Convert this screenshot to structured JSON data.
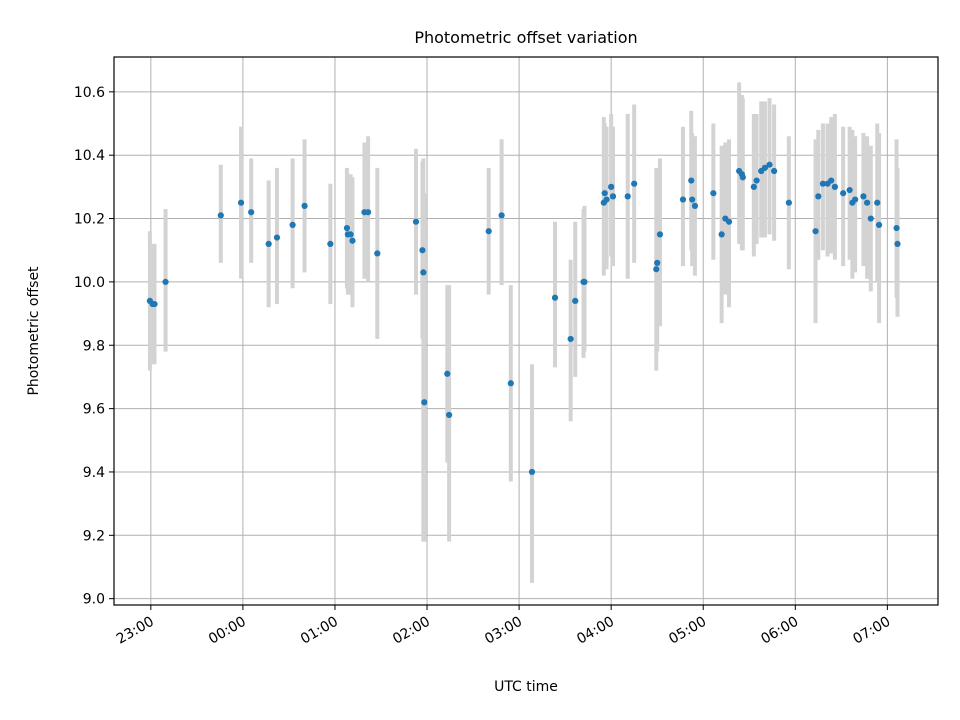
{
  "chart_data": {
    "type": "scatter",
    "title": "Photometric offset variation",
    "xlabel": "UTC time",
    "ylabel": "Photometric offset",
    "grid": true,
    "xlim_hours": [
      -1.4,
      7.55
    ],
    "ylim": [
      8.98,
      10.71
    ],
    "x_ticks": [
      {
        "h": -1,
        "label": "23:00"
      },
      {
        "h": 0,
        "label": "00:00"
      },
      {
        "h": 1,
        "label": "01:00"
      },
      {
        "h": 2,
        "label": "02:00"
      },
      {
        "h": 3,
        "label": "03:00"
      },
      {
        "h": 4,
        "label": "04:00"
      },
      {
        "h": 5,
        "label": "05:00"
      },
      {
        "h": 6,
        "label": "06:00"
      },
      {
        "h": 7,
        "label": "07:00"
      }
    ],
    "y_ticks": [
      {
        "v": 9.0,
        "label": "9.0"
      },
      {
        "v": 9.2,
        "label": "9.2"
      },
      {
        "v": 9.4,
        "label": "9.4"
      },
      {
        "v": 9.6,
        "label": "9.6"
      },
      {
        "v": 9.8,
        "label": "9.8"
      },
      {
        "v": 10.0,
        "label": "10.0"
      },
      {
        "v": 10.2,
        "label": "10.2"
      },
      {
        "v": 10.4,
        "label": "10.4"
      },
      {
        "v": 10.6,
        "label": "10.6"
      }
    ],
    "series": [
      {
        "name": "offset",
        "x_hours": [
          -1.01,
          -0.98,
          -0.96,
          -0.84,
          -0.24,
          -0.02,
          0.09,
          0.28,
          0.37,
          0.54,
          0.67,
          0.95,
          1.13,
          1.14,
          1.17,
          1.19,
          1.32,
          1.36,
          1.46,
          1.88,
          1.95,
          1.96,
          1.97,
          2.22,
          2.24,
          2.67,
          2.81,
          2.91,
          3.14,
          3.39,
          3.56,
          3.61,
          3.7,
          3.71,
          3.92,
          3.93,
          3.95,
          4.0,
          4.02,
          4.18,
          4.25,
          4.49,
          4.5,
          4.53,
          4.78,
          4.87,
          4.88,
          4.91,
          5.11,
          5.2,
          5.24,
          5.28,
          5.39,
          5.42,
          5.43,
          5.55,
          5.58,
          5.63,
          5.67,
          5.72,
          5.77,
          5.93,
          6.22,
          6.25,
          6.3,
          6.35,
          6.39,
          6.43,
          6.52,
          6.59,
          6.62,
          6.65,
          6.74,
          6.78,
          6.82,
          6.89,
          6.91,
          7.1,
          7.11
        ],
        "y": [
          9.94,
          9.93,
          9.93,
          10.0,
          10.21,
          10.25,
          10.22,
          10.12,
          10.14,
          10.18,
          10.24,
          10.12,
          10.17,
          10.15,
          10.15,
          10.13,
          10.22,
          10.22,
          10.09,
          10.19,
          10.1,
          10.03,
          9.62,
          9.71,
          9.58,
          10.16,
          10.21,
          9.68,
          9.4,
          9.95,
          9.82,
          9.94,
          10.0,
          10.0,
          10.25,
          10.28,
          10.26,
          10.3,
          10.27,
          10.27,
          10.31,
          10.04,
          10.06,
          10.15,
          10.26,
          10.32,
          10.26,
          10.24,
          10.28,
          10.15,
          10.2,
          10.19,
          10.35,
          10.34,
          10.33,
          10.3,
          10.32,
          10.35,
          10.36,
          10.37,
          10.35,
          10.25,
          10.16,
          10.27,
          10.31,
          10.31,
          10.32,
          10.3,
          10.28,
          10.29,
          10.25,
          10.26,
          10.27,
          10.25,
          10.2,
          10.25,
          10.18,
          10.17,
          10.12
        ],
        "err_low": [
          9.72,
          9.74,
          9.74,
          9.78,
          10.06,
          10.01,
          10.06,
          9.92,
          9.93,
          9.98,
          10.03,
          9.93,
          9.98,
          9.96,
          9.96,
          9.92,
          10.01,
          10.0,
          9.82,
          9.96,
          9.82,
          9.18,
          9.18,
          9.43,
          9.18,
          9.96,
          9.99,
          9.37,
          9.05,
          9.73,
          9.56,
          9.7,
          9.76,
          9.78,
          10.02,
          10.05,
          10.04,
          10.08,
          10.05,
          10.01,
          10.06,
          9.72,
          9.78,
          9.86,
          10.05,
          10.1,
          10.05,
          10.02,
          10.07,
          9.87,
          9.96,
          9.92,
          10.12,
          10.1,
          10.1,
          10.08,
          10.12,
          10.14,
          10.14,
          10.15,
          10.13,
          10.04,
          9.87,
          10.07,
          10.1,
          10.08,
          10.09,
          10.07,
          10.05,
          10.07,
          10.01,
          10.03,
          10.05,
          10.01,
          9.97,
          10.0,
          9.87,
          9.95,
          9.89
        ],
        "err_high": [
          10.16,
          10.12,
          10.12,
          10.23,
          10.37,
          10.49,
          10.39,
          10.32,
          10.36,
          10.39,
          10.45,
          10.31,
          10.36,
          10.34,
          10.34,
          10.33,
          10.44,
          10.46,
          10.36,
          10.42,
          10.38,
          10.39,
          10.28,
          9.99,
          9.99,
          10.36,
          10.45,
          9.99,
          9.74,
          10.19,
          10.07,
          10.19,
          10.23,
          10.24,
          10.52,
          10.5,
          10.49,
          10.53,
          10.49,
          10.53,
          10.56,
          10.36,
          10.34,
          10.39,
          10.49,
          10.54,
          10.47,
          10.46,
          10.5,
          10.43,
          10.44,
          10.45,
          10.63,
          10.59,
          10.58,
          10.53,
          10.53,
          10.57,
          10.57,
          10.58,
          10.56,
          10.46,
          10.45,
          10.48,
          10.5,
          10.5,
          10.52,
          10.53,
          10.49,
          10.49,
          10.48,
          10.46,
          10.47,
          10.46,
          10.43,
          10.5,
          10.47,
          10.45,
          10.36
        ]
      }
    ]
  }
}
